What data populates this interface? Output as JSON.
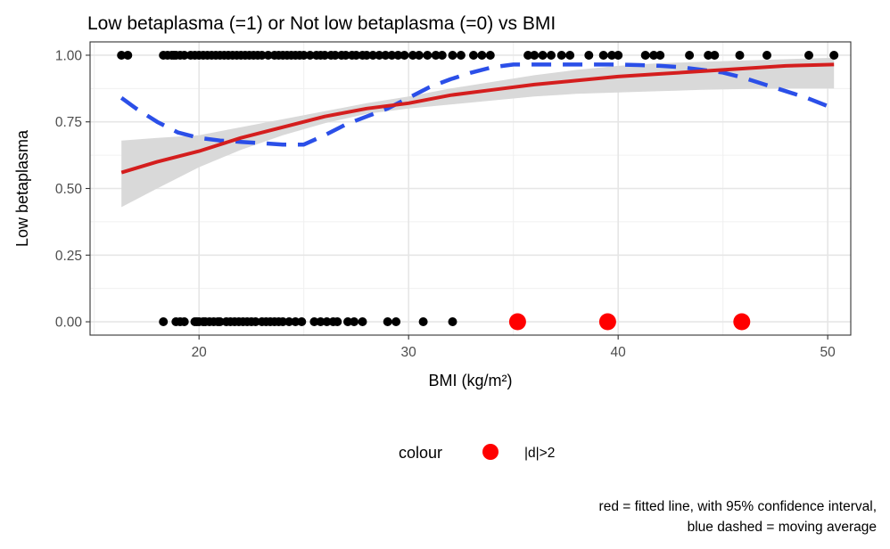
{
  "chart_data": {
    "type": "scatter",
    "title": "Low betaplasma (=1) or Not low betaplasma (=0) vs BMI",
    "xlabel": "BMI (kg/m²)",
    "ylabel": "Low betaplasma",
    "xlim": [
      14.8,
      51.1
    ],
    "ylim": [
      -0.05,
      1.05
    ],
    "x_ticks": [
      20,
      30,
      40,
      50
    ],
    "y_ticks": [
      0.0,
      0.25,
      0.5,
      0.75,
      1.0
    ],
    "x_tick_labels": [
      "20",
      "30",
      "40",
      "50"
    ],
    "y_tick_labels": [
      "0.00",
      "0.25",
      "0.50",
      "0.75",
      "1.00"
    ],
    "grid": true,
    "legend": {
      "position": "bottom",
      "title": "colour",
      "entries": [
        {
          "label": "|d|>2",
          "color": "#ff0000"
        }
      ]
    },
    "caption": [
      "red = fitted line, with 95% confidence interval,",
      "blue dashed = moving average"
    ],
    "colors": {
      "points": "#000000",
      "influential": "#ff0000",
      "fit": "#d41e1e",
      "ci": "#d9d9d9",
      "moving_average": "#2b4fe8"
    },
    "series": [
      {
        "kind": "points",
        "y": 1,
        "x": [
          16.3,
          16.6,
          18.3,
          18.5,
          18.7,
          18.8,
          18.9,
          19.1,
          19.3,
          19.6,
          19.8,
          20.0,
          20.2,
          20.4,
          20.6,
          20.8,
          21.0,
          21.2,
          21.4,
          21.6,
          21.8,
          22.0,
          22.2,
          22.4,
          22.6,
          22.8,
          23.0,
          23.3,
          23.6,
          23.8,
          24.0,
          24.2,
          24.4,
          24.6,
          24.8,
          25.0,
          25.3,
          25.6,
          25.8,
          26.0,
          26.3,
          26.5,
          26.8,
          27.0,
          27.3,
          27.5,
          27.8,
          28.0,
          28.3,
          28.6,
          28.9,
          29.2,
          29.5,
          29.8,
          30.2,
          30.5,
          30.9,
          31.3,
          31.6,
          32.1,
          32.5,
          33.1,
          33.5,
          33.9,
          35.7,
          36.0,
          36.4,
          36.8,
          37.3,
          37.7,
          38.6,
          39.3,
          39.7,
          40.0,
          41.3,
          41.7,
          42.0,
          43.4,
          44.3,
          44.6,
          45.8,
          47.1,
          49.1,
          50.3
        ]
      },
      {
        "kind": "points",
        "y": 0,
        "x": [
          18.3,
          18.9,
          19.1,
          19.3,
          19.8,
          19.9,
          20.0,
          20.2,
          20.3,
          20.5,
          20.7,
          20.9,
          21.0,
          21.3,
          21.5,
          21.7,
          21.9,
          22.1,
          22.3,
          22.5,
          22.7,
          23.0,
          23.2,
          23.4,
          23.6,
          23.8,
          24.0,
          24.3,
          24.6,
          24.9,
          25.5,
          25.8,
          26.1,
          26.4,
          26.6,
          27.1,
          27.4,
          27.8,
          29.0,
          29.4,
          30.7,
          32.1
        ]
      },
      {
        "kind": "points",
        "name": "|d|>2",
        "y": 0,
        "x": [
          35.2,
          39.5,
          45.9
        ]
      },
      {
        "kind": "fitted",
        "x": [
          16.3,
          18,
          20,
          22,
          24,
          26,
          28,
          30,
          32,
          34,
          36,
          38,
          40,
          42,
          44,
          46,
          48,
          50.3
        ],
        "y": [
          0.56,
          0.6,
          0.64,
          0.69,
          0.73,
          0.77,
          0.8,
          0.82,
          0.85,
          0.87,
          0.89,
          0.905,
          0.92,
          0.93,
          0.94,
          0.95,
          0.96,
          0.965
        ],
        "ci_lower": [
          0.43,
          0.5,
          0.58,
          0.645,
          0.7,
          0.745,
          0.78,
          0.8,
          0.815,
          0.83,
          0.845,
          0.855,
          0.86,
          0.865,
          0.87,
          0.873,
          0.875,
          0.875
        ],
        "ci_upper": [
          0.68,
          0.69,
          0.7,
          0.73,
          0.76,
          0.79,
          0.82,
          0.845,
          0.875,
          0.9,
          0.925,
          0.945,
          0.96,
          0.97,
          0.975,
          0.98,
          0.985,
          0.99
        ]
      },
      {
        "kind": "moving_average",
        "x": [
          16.3,
          17,
          18,
          19,
          20,
          21,
          22,
          23,
          24,
          25,
          26,
          27,
          28,
          29,
          30,
          31,
          32,
          33,
          34,
          35,
          36,
          37,
          38,
          39,
          40,
          41,
          42,
          43,
          44,
          45,
          46,
          47,
          48,
          49,
          50.3
        ],
        "y": [
          0.84,
          0.8,
          0.75,
          0.71,
          0.69,
          0.68,
          0.675,
          0.67,
          0.665,
          0.665,
          0.7,
          0.74,
          0.77,
          0.8,
          0.84,
          0.88,
          0.91,
          0.935,
          0.955,
          0.965,
          0.965,
          0.965,
          0.965,
          0.965,
          0.965,
          0.963,
          0.96,
          0.955,
          0.945,
          0.935,
          0.915,
          0.89,
          0.865,
          0.84,
          0.8
        ]
      }
    ]
  }
}
